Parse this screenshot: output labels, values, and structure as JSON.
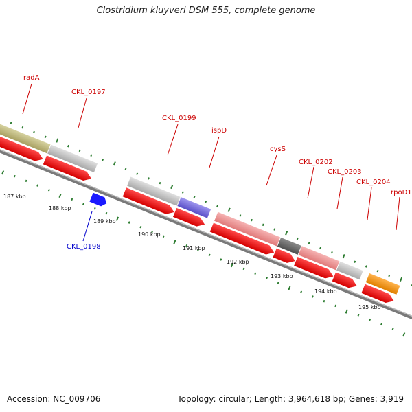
{
  "title": "Clostridium kluyveri DSM 555, complete genome",
  "accession": "Accession: NC_009706",
  "topology": "Topology: circular; Length: 3,964,618 bp; Genes: 3,919",
  "genes_upper": [
    "radA",
    "CKL_0197",
    "CKL_0199",
    "ispD",
    "cysS",
    "CKL_0202",
    "CKL_0203",
    "CKL_0204",
    "rpoD1"
  ],
  "genes_lower": [
    "CKL_0198"
  ],
  "scale_labels": [
    "187 kbp",
    "188 kbp",
    "189 kbp",
    "190 kbp",
    "191 kbp",
    "192 kbp",
    "193 kbp",
    "194 kbp",
    "195 kbp"
  ],
  "colors": {
    "label_red": "#cc0000",
    "label_blue": "#0000cc",
    "tick_green": "#2e7d32",
    "backbone": "#7a7a7a"
  }
}
